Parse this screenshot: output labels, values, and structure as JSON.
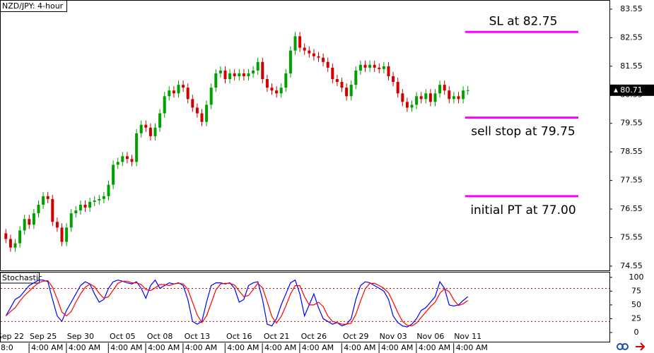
{
  "chart_data": [
    {
      "type": "candlestick",
      "title": "NZD/JPY: 4-hour",
      "categories": [
        null,
        "Sep 22",
        null,
        null,
        null,
        null,
        null,
        null,
        "Sep 25",
        null,
        null,
        null,
        null,
        null,
        null,
        null,
        "Sep 30",
        null,
        null,
        null,
        null,
        null,
        null,
        null,
        null,
        "Oct 05",
        null,
        null,
        null,
        null,
        null,
        null,
        null,
        "Oct 08",
        null,
        null,
        null,
        null,
        null,
        null,
        null,
        "Oct 13",
        null,
        null,
        null,
        null,
        null,
        null,
        null,
        null,
        "Oct 16",
        null,
        null,
        null,
        null,
        null,
        null,
        null,
        "Oct 21",
        null,
        null,
        null,
        null,
        null,
        null,
        null,
        "Oct 26",
        null,
        null,
        null,
        null,
        null,
        null,
        null,
        null,
        "Oct 29",
        null,
        null,
        null,
        null,
        null,
        null,
        null,
        "Nov 03",
        null,
        null,
        null,
        null,
        null,
        null,
        null,
        "Nov 06",
        null,
        null,
        null,
        null,
        null,
        null,
        null,
        "Nov 11"
      ],
      "time_labels": [
        null,
        "8:0",
        null,
        null,
        null,
        null,
        null,
        null,
        "4:00 AM",
        null,
        null,
        null,
        null,
        null,
        null,
        null,
        "4:00 AM",
        null,
        null,
        null,
        null,
        null,
        null,
        null,
        null,
        "4:00 AM",
        null,
        null,
        null,
        null,
        null,
        null,
        null,
        "4:00 AM",
        null,
        null,
        null,
        null,
        null,
        null,
        null,
        "4:00 AM",
        null,
        null,
        null,
        null,
        null,
        null,
        null,
        null,
        "4:00 AM",
        null,
        null,
        null,
        null,
        null,
        null,
        null,
        "4:00 AM",
        null,
        null,
        null,
        null,
        null,
        null,
        null,
        "4:00 AM",
        null,
        null,
        null,
        null,
        null,
        null,
        null,
        null,
        "4:00 AM",
        null,
        null,
        null,
        null,
        null,
        null,
        null,
        "4:00 AM",
        null,
        null,
        null,
        null,
        null,
        null,
        null,
        "4:00 AM",
        null,
        null,
        null,
        null,
        null,
        null,
        null,
        "4:00 AM"
      ],
      "open": [
        75.7,
        75.5,
        75.2,
        75.35,
        75.8,
        76.2,
        76.0,
        76.4,
        76.7,
        77.0,
        76.9,
        76.1,
        75.9,
        75.4,
        75.9,
        76.4,
        76.5,
        76.7,
        76.6,
        76.8,
        76.85,
        76.9,
        77.0,
        77.4,
        78.1,
        78.2,
        78.4,
        78.3,
        78.2,
        79.2,
        79.5,
        79.4,
        79.1,
        79.4,
        79.9,
        80.5,
        80.7,
        80.6,
        80.9,
        80.8,
        80.4,
        80.1,
        79.9,
        79.6,
        80.2,
        80.8,
        81.3,
        81.4,
        81.1,
        81.3,
        81.2,
        81.3,
        81.2,
        81.3,
        81.4,
        81.7,
        81.1,
        80.8,
        80.7,
        80.6,
        80.8,
        81.3,
        82.1,
        82.6,
        82.2,
        82.1,
        82.0,
        81.9,
        81.85,
        81.7,
        81.5,
        81.1,
        81.0,
        80.8,
        80.5,
        80.9,
        81.4,
        81.6,
        81.5,
        81.6,
        81.5,
        81.45,
        81.55,
        81.2,
        81.0,
        80.6,
        80.3,
        80.1,
        80.2,
        80.5,
        80.4,
        80.6,
        80.3,
        80.6,
        80.9,
        80.7,
        80.4,
        80.5,
        80.4,
        80.7
      ],
      "high": [
        75.85,
        75.65,
        75.5,
        75.95,
        76.35,
        76.35,
        76.55,
        76.85,
        77.15,
        77.15,
        77.05,
        76.25,
        76.05,
        76.05,
        76.55,
        76.65,
        76.85,
        76.85,
        76.95,
        77.0,
        77.05,
        77.15,
        77.55,
        78.25,
        78.35,
        78.55,
        78.55,
        78.45,
        79.35,
        79.65,
        79.65,
        79.55,
        79.55,
        80.05,
        80.65,
        80.85,
        80.85,
        81.05,
        81.05,
        80.95,
        80.55,
        80.25,
        80.05,
        80.35,
        80.95,
        81.45,
        81.55,
        81.55,
        81.45,
        81.45,
        81.45,
        81.45,
        81.45,
        81.55,
        81.85,
        81.85,
        81.25,
        80.95,
        80.85,
        80.95,
        81.45,
        82.25,
        82.75,
        82.75,
        82.35,
        82.25,
        82.15,
        82.05,
        82.0,
        81.85,
        81.65,
        81.25,
        81.15,
        80.95,
        81.05,
        81.55,
        81.75,
        81.75,
        81.75,
        81.75,
        81.65,
        81.7,
        81.7,
        81.35,
        81.15,
        80.75,
        80.45,
        80.35,
        80.65,
        80.65,
        80.75,
        80.75,
        80.75,
        81.05,
        81.05,
        80.85,
        80.65,
        80.65,
        80.85,
        80.86
      ],
      "low": [
        75.35,
        75.05,
        75.05,
        75.2,
        75.65,
        75.85,
        75.85,
        76.25,
        76.55,
        76.75,
        75.95,
        75.75,
        75.25,
        75.25,
        75.75,
        76.25,
        76.35,
        76.45,
        76.45,
        76.65,
        76.7,
        76.75,
        76.85,
        77.25,
        77.95,
        78.05,
        78.15,
        78.05,
        78.05,
        79.05,
        79.25,
        78.95,
        78.95,
        79.25,
        79.75,
        80.35,
        80.45,
        80.45,
        80.65,
        80.25,
        79.95,
        79.75,
        79.45,
        79.45,
        80.05,
        80.65,
        81.15,
        80.95,
        80.95,
        81.05,
        81.05,
        81.05,
        81.05,
        81.15,
        81.25,
        80.95,
        80.65,
        80.55,
        80.45,
        80.45,
        80.65,
        81.15,
        81.95,
        82.05,
        81.95,
        81.85,
        81.75,
        81.7,
        81.55,
        81.35,
        80.95,
        80.85,
        80.65,
        80.35,
        80.35,
        80.75,
        81.25,
        81.35,
        81.35,
        81.35,
        81.3,
        81.3,
        81.05,
        80.85,
        80.45,
        80.15,
        79.95,
        79.95,
        80.05,
        80.25,
        80.25,
        80.15,
        80.15,
        80.45,
        80.55,
        80.25,
        80.25,
        80.25,
        80.25,
        80.55
      ],
      "close": [
        75.5,
        75.2,
        75.35,
        75.8,
        76.2,
        76.0,
        76.4,
        76.7,
        77.0,
        76.9,
        76.1,
        75.9,
        75.4,
        75.9,
        76.4,
        76.5,
        76.7,
        76.6,
        76.8,
        76.85,
        76.9,
        77.0,
        77.4,
        78.1,
        78.2,
        78.4,
        78.3,
        78.2,
        79.2,
        79.5,
        79.4,
        79.1,
        79.4,
        79.9,
        80.5,
        80.7,
        80.6,
        80.9,
        80.8,
        80.4,
        80.1,
        79.9,
        79.6,
        80.2,
        80.8,
        81.3,
        81.4,
        81.1,
        81.3,
        81.2,
        81.3,
        81.2,
        81.3,
        81.4,
        81.7,
        81.1,
        80.8,
        80.7,
        80.6,
        80.8,
        81.3,
        82.1,
        82.6,
        82.2,
        82.1,
        82.0,
        81.9,
        81.85,
        81.7,
        81.5,
        81.1,
        81.0,
        80.8,
        80.5,
        80.9,
        81.4,
        81.6,
        81.5,
        81.6,
        81.5,
        81.45,
        81.55,
        81.2,
        81.0,
        80.6,
        80.3,
        80.1,
        80.2,
        80.5,
        80.4,
        80.6,
        80.3,
        80.6,
        80.9,
        80.7,
        80.4,
        80.5,
        80.4,
        80.7,
        80.71
      ],
      "up_color": "#00a000",
      "down_color": "#d00000",
      "ylim": [
        74.4,
        83.87
      ],
      "yticks": [
        83.55,
        82.55,
        81.55,
        80.55,
        79.55,
        78.55,
        77.55,
        76.55,
        75.55,
        74.55
      ],
      "last_price": 80.71,
      "annotations": [
        {
          "label": "SL at 82.75",
          "value": 82.75,
          "label_side": "above",
          "color": "#ff00ff"
        },
        {
          "label": "sell stop at 79.75",
          "value": 79.75,
          "label_side": "below",
          "color": "#ff00ff"
        },
        {
          "label": "initial PT at 77.00",
          "value": 77.0,
          "label_side": "below",
          "color": "#ff00ff"
        }
      ]
    },
    {
      "type": "line",
      "title": "Stochastic",
      "series": [
        {
          "color": "#0000ff",
          "values": [
            30,
            45,
            60,
            65,
            75,
            85,
            90,
            95,
            95,
            92,
            60,
            30,
            20,
            40,
            55,
            70,
            85,
            92,
            88,
            70,
            55,
            60,
            80,
            92,
            95,
            93,
            90,
            88,
            92,
            80,
            62,
            85,
            95,
            80,
            85,
            90,
            88,
            90,
            85,
            60,
            20,
            15,
            20,
            55,
            85,
            90,
            90,
            88,
            90,
            80,
            55,
            60,
            85,
            90,
            92,
            60,
            15,
            12,
            25,
            50,
            70,
            90,
            95,
            70,
            30,
            50,
            70,
            45,
            25,
            20,
            15,
            18,
            12,
            15,
            25,
            60,
            85,
            92,
            90,
            85,
            80,
            75,
            60,
            30,
            18,
            12,
            10,
            15,
            25,
            40,
            45,
            55,
            65,
            92,
            80,
            50,
            48,
            50,
            58,
            65
          ]
        },
        {
          "color": "#ff0000",
          "values": [
            30,
            38,
            45,
            57,
            67,
            75,
            83,
            90,
            93,
            94,
            82,
            61,
            37,
            30,
            38,
            55,
            70,
            82,
            88,
            83,
            71,
            62,
            65,
            77,
            89,
            93,
            93,
            90,
            90,
            87,
            78,
            76,
            81,
            87,
            87,
            85,
            88,
            89,
            88,
            78,
            55,
            32,
            18,
            30,
            53,
            77,
            88,
            89,
            89,
            86,
            75,
            65,
            67,
            78,
            89,
            81,
            56,
            29,
            17,
            29,
            48,
            70,
            85,
            85,
            65,
            50,
            50,
            55,
            47,
            30,
            20,
            18,
            15,
            15,
            17,
            33,
            57,
            79,
            89,
            89,
            85,
            80,
            72,
            55,
            36,
            20,
            13,
            12,
            17,
            27,
            37,
            47,
            55,
            71,
            79,
            74,
            59,
            49,
            52,
            58
          ]
        }
      ],
      "ylim": [
        -18,
        110
      ],
      "yticks": [
        100,
        75,
        50,
        25,
        0
      ],
      "levels": [
        80,
        20
      ],
      "level_color": "#d00000"
    }
  ]
}
